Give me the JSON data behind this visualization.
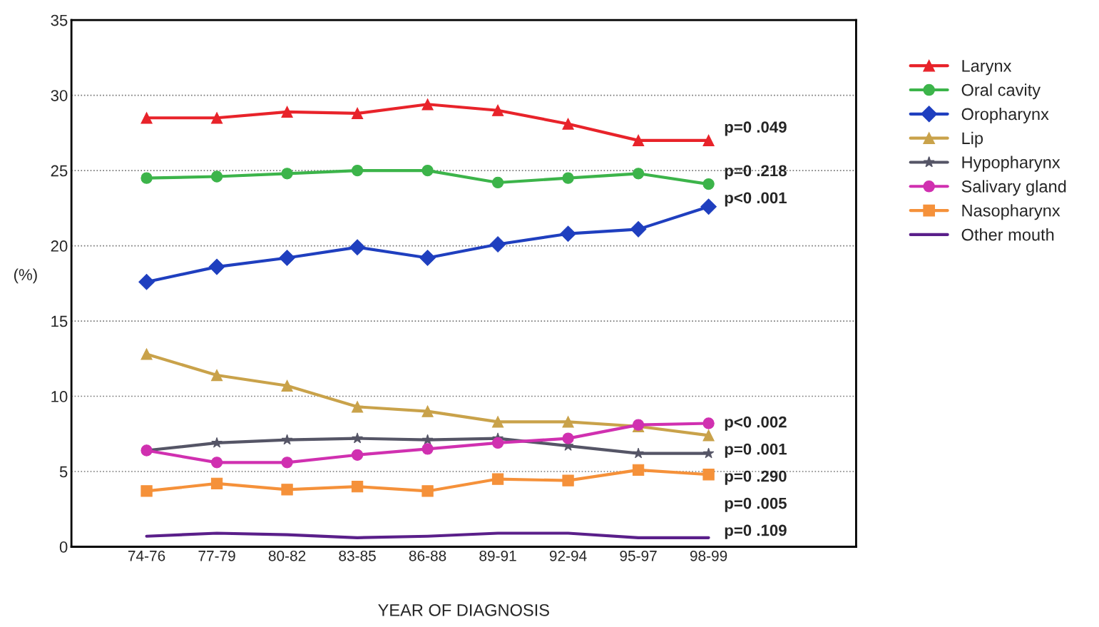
{
  "chart_data": {
    "type": "line",
    "xlabel": "YEAR OF DIAGNOSIS",
    "ylabel": "(%)",
    "categories": [
      "74-76",
      "77-79",
      "80-82",
      "83-85",
      "86-88",
      "89-91",
      "92-94",
      "95-97",
      "98-99"
    ],
    "ylim": [
      0,
      35
    ],
    "yticks": [
      0,
      5,
      10,
      15,
      20,
      25,
      30,
      35
    ],
    "grid": "y",
    "legend": "right",
    "series": [
      {
        "name": "Larynx",
        "color": "#e8232a",
        "marker": "triangle",
        "values": [
          28.5,
          28.5,
          28.9,
          28.8,
          29.4,
          29.0,
          28.1,
          27.0,
          27.0
        ]
      },
      {
        "name": "Oral cavity",
        "color": "#3cb44a",
        "marker": "circle",
        "values": [
          24.5,
          24.6,
          24.8,
          25.0,
          25.0,
          24.2,
          24.5,
          24.8,
          24.1
        ]
      },
      {
        "name": "Oropharynx",
        "color": "#1f3fbf",
        "marker": "diamond",
        "values": [
          17.6,
          18.6,
          19.2,
          19.9,
          19.2,
          20.1,
          20.8,
          21.1,
          22.6
        ]
      },
      {
        "name": "Lip",
        "color": "#c9a24a",
        "marker": "triangle",
        "values": [
          12.8,
          11.4,
          10.7,
          9.3,
          9.0,
          8.3,
          8.3,
          8.0,
          7.4
        ]
      },
      {
        "name": "Hypopharynx",
        "color": "#555566",
        "marker": "star",
        "values": [
          6.4,
          6.9,
          7.1,
          7.2,
          7.1,
          7.2,
          6.7,
          6.2,
          6.2
        ]
      },
      {
        "name": "Salivary gland",
        "color": "#d030b0",
        "marker": "circle",
        "values": [
          6.4,
          5.6,
          5.6,
          6.1,
          6.5,
          6.9,
          7.2,
          8.1,
          8.2
        ]
      },
      {
        "name": "Nasopharynx",
        "color": "#f5913a",
        "marker": "square",
        "values": [
          3.7,
          4.2,
          3.8,
          4.0,
          3.7,
          4.5,
          4.4,
          5.1,
          4.8
        ]
      },
      {
        "name": "Other mouth",
        "color": "#5a1f8a",
        "marker": "none",
        "values": [
          0.7,
          0.9,
          0.8,
          0.6,
          0.7,
          0.9,
          0.9,
          0.6,
          0.6
        ]
      }
    ],
    "annotations": [
      "p=0 .049",
      "p=0 .218",
      "p<0 .001",
      "p<0 .002",
      "p=0 .001",
      "p=0 .290",
      "p=0 .005",
      "p=0 .109"
    ]
  }
}
